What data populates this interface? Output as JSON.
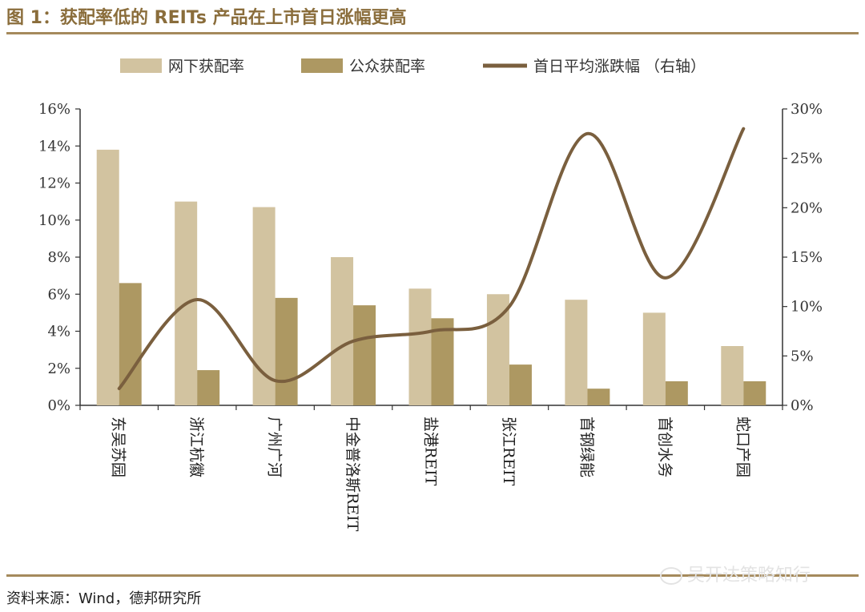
{
  "title": "图 1：获配率低的 REITs 产品在上市首日涨幅更高",
  "source": "资料来源：Wind，德邦研究所",
  "watermark": "吴开达策略知行",
  "colors": {
    "offline": "#d2c3a0",
    "public": "#ad9862",
    "line": "#7a5f3e",
    "rule": "#a58a5c",
    "title": "#8a6d3b"
  },
  "chart_data": {
    "type": "bar",
    "categories": [
      "东吴苏园",
      "浙江杭徽",
      "广州广河",
      "中金普洛斯REIT",
      "盐港REIT",
      "张江REIT",
      "首钢绿能",
      "首创水务",
      "蛇口产园"
    ],
    "series": [
      {
        "name": "网下获配率",
        "type": "bar",
        "axis": "left",
        "values": [
          13.8,
          11.0,
          10.7,
          8.0,
          6.3,
          6.0,
          5.7,
          5.0,
          3.2
        ]
      },
      {
        "name": "公众获配率",
        "type": "bar",
        "axis": "left",
        "values": [
          6.6,
          1.9,
          5.8,
          5.4,
          4.7,
          2.2,
          0.9,
          1.3,
          1.3
        ]
      },
      {
        "name": "首日平均涨跌幅 （右轴）",
        "type": "line",
        "axis": "right",
        "values": [
          1.7,
          10.7,
          2.5,
          6.5,
          7.5,
          10.0,
          27.5,
          12.9,
          28.0
        ]
      }
    ],
    "y_left": {
      "min": 0,
      "max": 16,
      "step": 2,
      "ticks": [
        "0%",
        "2%",
        "4%",
        "6%",
        "8%",
        "10%",
        "12%",
        "14%",
        "16%"
      ]
    },
    "y_right": {
      "min": 0,
      "max": 30,
      "step": 5,
      "ticks": [
        "0%",
        "5%",
        "10%",
        "15%",
        "20%",
        "25%",
        "30%"
      ]
    },
    "legend_position": "top"
  }
}
